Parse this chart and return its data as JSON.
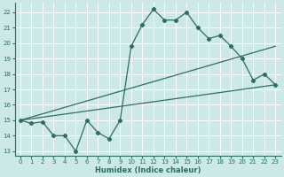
{
  "xlabel": "Humidex (Indice chaleur)",
  "xlim": [
    -0.5,
    23.5
  ],
  "ylim": [
    12.7,
    22.6
  ],
  "yticks": [
    13,
    14,
    15,
    16,
    17,
    18,
    19,
    20,
    21,
    22
  ],
  "xticks": [
    0,
    1,
    2,
    3,
    4,
    5,
    6,
    7,
    8,
    9,
    10,
    11,
    12,
    13,
    14,
    15,
    16,
    17,
    18,
    19,
    20,
    21,
    22,
    23
  ],
  "bg_color": "#cce8e8",
  "grid_color": "#ffffff",
  "line_color": "#2d6e62",
  "line1_x": [
    0,
    1,
    2,
    3,
    4,
    5,
    6,
    7,
    8,
    9,
    10,
    11,
    12,
    13,
    14,
    15,
    16,
    17,
    18,
    19,
    20,
    21,
    22,
    23
  ],
  "line1_y": [
    15.0,
    14.8,
    14.9,
    14.0,
    14.0,
    13.0,
    15.0,
    14.2,
    13.8,
    15.0,
    19.8,
    21.2,
    22.2,
    21.5,
    21.5,
    22.0,
    21.0,
    20.3,
    20.5,
    19.8,
    19.0,
    17.6,
    18.0,
    17.3
  ],
  "line2_x": [
    0,
    23
  ],
  "line2_y": [
    15.0,
    19.8
  ],
  "line3_x": [
    0,
    23
  ],
  "line3_y": [
    15.0,
    17.3
  ],
  "xlabel_fontsize": 6.0,
  "tick_fontsize": 5.0
}
